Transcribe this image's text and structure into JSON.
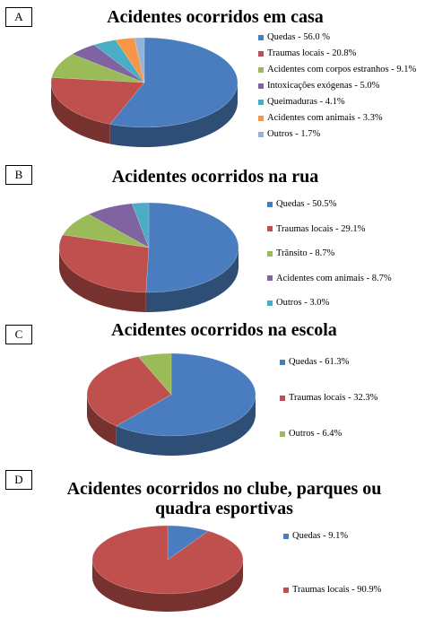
{
  "chart_data": [
    {
      "label": "A",
      "type": "pie",
      "title": "Acidentes ocorridos em casa",
      "slices": [
        {
          "name": "Quedas",
          "value": 56.0,
          "legend": "Quedas - 56.0 %",
          "color": "#4a7dbf"
        },
        {
          "name": "Traumas locais",
          "value": 20.8,
          "legend": "Traumas locais - 20.8%",
          "color": "#c0504d"
        },
        {
          "name": "Acidentes com corpos estranhos",
          "value": 9.1,
          "legend": "Acidentes com corpos estranhos - 9.1%",
          "color": "#9bbb59"
        },
        {
          "name": "Intoxicações exógenas",
          "value": 5.0,
          "legend": "Intoxicações exógenas - 5.0%",
          "color": "#8064a2"
        },
        {
          "name": "Queimaduras",
          "value": 4.1,
          "legend": "Queimaduras - 4.1%",
          "color": "#4bacc6"
        },
        {
          "name": "Acidentes com animais",
          "value": 3.3,
          "legend": "Acidentes com animais - 3.3%",
          "color": "#f79646"
        },
        {
          "name": "Outros",
          "value": 1.7,
          "legend": "Outros - 1.7%",
          "color": "#95b3d7"
        }
      ]
    },
    {
      "label": "B",
      "type": "pie",
      "title": "Acidentes ocorridos na rua",
      "slices": [
        {
          "name": "Quedas",
          "value": 50.5,
          "legend": "Quedas - 50.5%",
          "color": "#4a7dbf"
        },
        {
          "name": "Traumas locais",
          "value": 29.1,
          "legend": "Traumas locais - 29.1%",
          "color": "#c0504d"
        },
        {
          "name": "Trânsito",
          "value": 8.7,
          "legend": "Trânsito - 8.7%",
          "color": "#9bbb59"
        },
        {
          "name": "Acidentes com animais",
          "value": 8.7,
          "legend": "Acidentes com animais - 8.7%",
          "color": "#8064a2"
        },
        {
          "name": "Outros",
          "value": 3.0,
          "legend": "Outros - 3.0%",
          "color": "#4bacc6"
        }
      ]
    },
    {
      "label": "C",
      "type": "pie",
      "title": "Acidentes ocorridos na escola",
      "slices": [
        {
          "name": "Quedas",
          "value": 61.3,
          "legend": "Quedas - 61.3%",
          "color": "#4a7dbf"
        },
        {
          "name": "Traumas locais",
          "value": 32.3,
          "legend": "Traumas locais - 32.3%",
          "color": "#c0504d"
        },
        {
          "name": "Outros",
          "value": 6.4,
          "legend": "Outros - 6.4%",
          "color": "#9bbb59"
        }
      ]
    },
    {
      "label": "D",
      "type": "pie",
      "title": "Acidentes ocorridos no clube, parques ou quadra esportivas",
      "title_lines": [
        "Acidentes ocorridos no clube, parques ou",
        "quadra esportivas"
      ],
      "slices": [
        {
          "name": "Quedas",
          "value": 9.1,
          "legend": "Quedas - 9.1%",
          "color": "#4a7dbf"
        },
        {
          "name": "Traumas locais",
          "value": 90.9,
          "legend": "Traumas locais - 90.9%",
          "color": "#c0504d"
        }
      ]
    }
  ]
}
